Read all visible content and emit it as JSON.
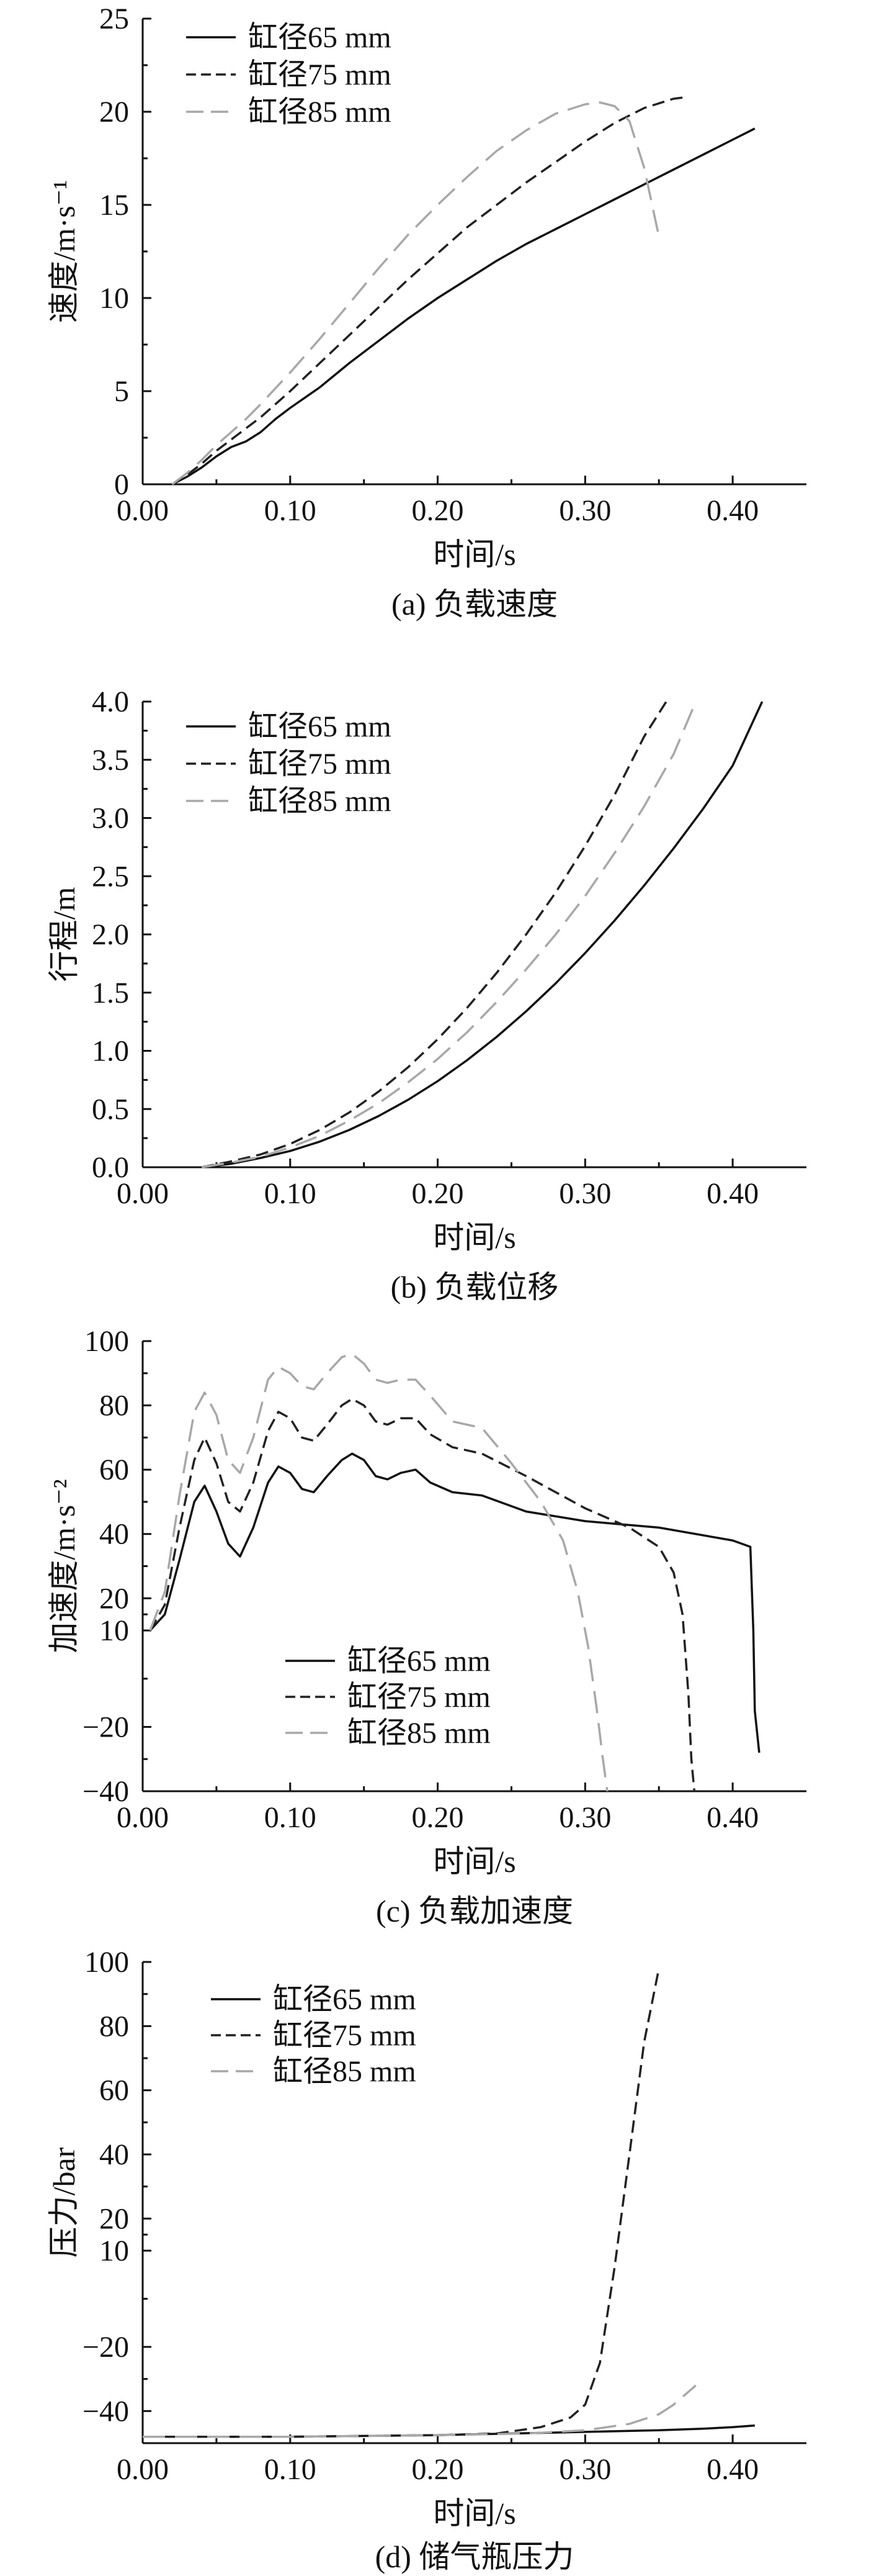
{
  "colors": {
    "black": "#111111",
    "dark": "#222222",
    "gray": "#a8a8a8"
  },
  "chart_data": [
    {
      "id": "a",
      "type": "line",
      "caption": "(a) 负载速度",
      "xlabel": "时间/s",
      "ylabel": "速度/m·s⁻¹",
      "xlim": [
        0,
        0.45
      ],
      "ylim": [
        0,
        25
      ],
      "xticks": [
        0,
        0.1,
        0.2,
        0.3,
        0.4
      ],
      "xtick_labels": [
        "0.00",
        "0.10",
        "0.20",
        "0.30",
        "0.40"
      ],
      "yticks": [
        0,
        5,
        10,
        15,
        20,
        25
      ],
      "ytick_labels": [
        "0",
        "5",
        "10",
        "15",
        "20",
        "25"
      ],
      "legend_position": "top-left",
      "series": [
        {
          "name": "缸径65 mm",
          "style": "solid",
          "color": "#111111",
          "x": [
            0.02,
            0.03,
            0.04,
            0.05,
            0.06,
            0.07,
            0.08,
            0.09,
            0.1,
            0.12,
            0.14,
            0.16,
            0.18,
            0.2,
            0.22,
            0.24,
            0.26,
            0.28,
            0.3,
            0.32,
            0.34,
            0.36,
            0.38,
            0.4,
            0.415
          ],
          "y": [
            0,
            0.4,
            0.9,
            1.5,
            2.0,
            2.3,
            2.8,
            3.5,
            4.1,
            5.2,
            6.5,
            7.7,
            8.9,
            10.0,
            11.0,
            12.0,
            12.9,
            13.7,
            14.5,
            15.3,
            16.1,
            16.9,
            17.7,
            18.5,
            19.1
          ]
        },
        {
          "name": "缸径75 mm",
          "style": "dashed",
          "color": "#222222",
          "x": [
            0.02,
            0.03,
            0.04,
            0.05,
            0.06,
            0.07,
            0.08,
            0.1,
            0.12,
            0.14,
            0.16,
            0.18,
            0.2,
            0.22,
            0.24,
            0.26,
            0.28,
            0.3,
            0.32,
            0.34,
            0.36,
            0.37
          ],
          "y": [
            0,
            0.5,
            1.1,
            1.8,
            2.4,
            3.0,
            3.6,
            5.0,
            6.5,
            8.0,
            9.5,
            11.0,
            12.4,
            13.8,
            15.0,
            16.2,
            17.3,
            18.4,
            19.4,
            20.2,
            20.7,
            20.8
          ]
        },
        {
          "name": "缸径85 mm",
          "style": "longdash",
          "color": "#a8a8a8",
          "x": [
            0.02,
            0.03,
            0.04,
            0.05,
            0.06,
            0.07,
            0.08,
            0.1,
            0.12,
            0.14,
            0.16,
            0.18,
            0.2,
            0.22,
            0.24,
            0.26,
            0.28,
            0.3,
            0.31,
            0.32,
            0.33,
            0.34,
            0.35
          ],
          "y": [
            0,
            0.6,
            1.3,
            2.1,
            2.8,
            3.5,
            4.3,
            6.0,
            7.8,
            9.7,
            11.6,
            13.4,
            15.0,
            16.5,
            17.9,
            19.0,
            19.9,
            20.4,
            20.5,
            20.3,
            19.5,
            17.0,
            13.3
          ]
        }
      ]
    },
    {
      "id": "b",
      "type": "line",
      "caption": "(b) 负载位移",
      "xlabel": "时间/s",
      "ylabel": "行程/m",
      "xlim": [
        0,
        0.45
      ],
      "ylim": [
        0,
        4.0
      ],
      "xticks": [
        0,
        0.1,
        0.2,
        0.3,
        0.4
      ],
      "xtick_labels": [
        "0.00",
        "0.10",
        "0.20",
        "0.30",
        "0.40"
      ],
      "yticks": [
        0,
        0.5,
        1.0,
        1.5,
        2.0,
        2.5,
        3.0,
        3.5,
        4.0
      ],
      "ytick_labels": [
        "0.0",
        "0.5",
        "1.0",
        "1.5",
        "2.0",
        "2.5",
        "3.0",
        "3.5",
        "4.0"
      ],
      "legend_position": "top-left",
      "series": [
        {
          "name": "缸径65 mm",
          "style": "solid",
          "color": "#111111",
          "x": [
            0.04,
            0.06,
            0.08,
            0.1,
            0.12,
            0.14,
            0.16,
            0.18,
            0.2,
            0.22,
            0.24,
            0.26,
            0.28,
            0.3,
            0.32,
            0.34,
            0.36,
            0.38,
            0.4,
            0.42
          ],
          "y": [
            0,
            0.03,
            0.08,
            0.14,
            0.22,
            0.32,
            0.44,
            0.58,
            0.74,
            0.92,
            1.12,
            1.34,
            1.58,
            1.84,
            2.12,
            2.42,
            2.74,
            3.08,
            3.45,
            4.0
          ]
        },
        {
          "name": "缸径75 mm",
          "style": "dashed",
          "color": "#222222",
          "x": [
            0.04,
            0.06,
            0.08,
            0.1,
            0.12,
            0.14,
            0.16,
            0.18,
            0.2,
            0.22,
            0.24,
            0.26,
            0.28,
            0.3,
            0.32,
            0.34,
            0.355
          ],
          "y": [
            0,
            0.05,
            0.11,
            0.2,
            0.32,
            0.47,
            0.65,
            0.86,
            1.1,
            1.37,
            1.67,
            2.0,
            2.36,
            2.76,
            3.2,
            3.7,
            4.0
          ]
        },
        {
          "name": "缸径85 mm",
          "style": "longdash",
          "color": "#a8a8a8",
          "x": [
            0.04,
            0.06,
            0.08,
            0.1,
            0.12,
            0.14,
            0.16,
            0.18,
            0.2,
            0.22,
            0.24,
            0.26,
            0.28,
            0.3,
            0.32,
            0.34,
            0.36,
            0.375
          ],
          "y": [
            0,
            0.04,
            0.09,
            0.17,
            0.27,
            0.4,
            0.55,
            0.73,
            0.93,
            1.16,
            1.42,
            1.7,
            2.0,
            2.33,
            2.7,
            3.1,
            3.55,
            4.0
          ]
        }
      ]
    },
    {
      "id": "c",
      "type": "line",
      "caption": "(c) 负载加速度",
      "xlabel": "时间/s",
      "ylabel": "加速度/m·s⁻²",
      "xlim": [
        0,
        0.45
      ],
      "ylim": [
        -40,
        100
      ],
      "xticks": [
        0,
        0.1,
        0.2,
        0.3,
        0.4
      ],
      "xtick_labels": [
        "0.00",
        "0.10",
        "0.20",
        "0.30",
        "0.40"
      ],
      "yticks": [
        -40,
        -20,
        10,
        20,
        40,
        60,
        80,
        100
      ],
      "ytick_labels": [
        "−40",
        "−20",
        "10",
        "20",
        "40",
        "60",
        "80",
        "100"
      ],
      "legend_position": "bottom-center",
      "series": [
        {
          "name": "缸径65 mm",
          "style": "solid",
          "color": "#111111",
          "x": [
            0.005,
            0.015,
            0.025,
            0.035,
            0.042,
            0.05,
            0.058,
            0.066,
            0.075,
            0.085,
            0.092,
            0.1,
            0.108,
            0.116,
            0.125,
            0.135,
            0.142,
            0.15,
            0.158,
            0.166,
            0.175,
            0.185,
            0.195,
            0.21,
            0.23,
            0.26,
            0.3,
            0.35,
            0.4,
            0.412,
            0.414,
            0.415,
            0.418
          ],
          "y": [
            10,
            15,
            32,
            50,
            55,
            47,
            37,
            33,
            42,
            56,
            61,
            59,
            54,
            53,
            58,
            63,
            65,
            63,
            58,
            57,
            59,
            60,
            56,
            53,
            52,
            47,
            44,
            42,
            38,
            36,
            10,
            -15,
            -28
          ]
        },
        {
          "name": "缸径75 mm",
          "style": "dashed",
          "color": "#222222",
          "x": [
            0.005,
            0.015,
            0.025,
            0.035,
            0.042,
            0.05,
            0.058,
            0.066,
            0.075,
            0.085,
            0.092,
            0.1,
            0.108,
            0.116,
            0.125,
            0.135,
            0.142,
            0.15,
            0.158,
            0.166,
            0.175,
            0.185,
            0.195,
            0.21,
            0.23,
            0.26,
            0.3,
            0.33,
            0.35,
            0.36,
            0.366,
            0.37,
            0.372,
            0.374
          ],
          "y": [
            10,
            18,
            42,
            63,
            70,
            62,
            50,
            47,
            56,
            72,
            78,
            76,
            70,
            69,
            74,
            80,
            82,
            80,
            75,
            74,
            76,
            76,
            71,
            67,
            65,
            58,
            48,
            42,
            36,
            28,
            15,
            -10,
            -30,
            -40
          ]
        },
        {
          "name": "缸径85 mm",
          "style": "longdash",
          "color": "#a8a8a8",
          "x": [
            0.005,
            0.015,
            0.025,
            0.035,
            0.042,
            0.05,
            0.058,
            0.066,
            0.075,
            0.085,
            0.092,
            0.1,
            0.108,
            0.116,
            0.125,
            0.135,
            0.142,
            0.15,
            0.158,
            0.166,
            0.175,
            0.185,
            0.195,
            0.21,
            0.23,
            0.25,
            0.27,
            0.285,
            0.295,
            0.302,
            0.308,
            0.312,
            0.315
          ],
          "y": [
            10,
            22,
            52,
            78,
            84,
            77,
            63,
            59,
            70,
            88,
            92,
            90,
            86,
            85,
            90,
            95,
            96,
            93,
            88,
            87,
            88,
            88,
            83,
            75,
            73,
            62,
            50,
            38,
            22,
            5,
            -15,
            -30,
            -40
          ]
        }
      ]
    },
    {
      "id": "d",
      "type": "line",
      "caption": "(d) 储气瓶压力",
      "xlabel": "时间/s",
      "ylabel": "压力/bar",
      "xlim": [
        0,
        0.45
      ],
      "ylim": [
        -50,
        100
      ],
      "xticks": [
        0,
        0.1,
        0.2,
        0.3,
        0.4
      ],
      "xtick_labels": [
        "0.00",
        "0.10",
        "0.20",
        "0.30",
        "0.40"
      ],
      "yticks": [
        -40,
        -20,
        10,
        20,
        40,
        60,
        80,
        100
      ],
      "ytick_labels": [
        "−40",
        "−20",
        "10",
        "20",
        "40",
        "60",
        "80",
        "100"
      ],
      "legend_position": "top-left",
      "series": [
        {
          "name": "缸径65 mm",
          "style": "solid",
          "color": "#111111",
          "x": [
            0,
            0.1,
            0.2,
            0.25,
            0.3,
            0.35,
            0.38,
            0.4,
            0.415
          ],
          "y": [
            -48,
            -48,
            -47.5,
            -47,
            -46.5,
            -46,
            -45.5,
            -45,
            -44.5
          ]
        },
        {
          "name": "缸径75 mm",
          "style": "dashed",
          "color": "#222222",
          "x": [
            0,
            0.1,
            0.2,
            0.24,
            0.27,
            0.29,
            0.3,
            0.31,
            0.32,
            0.33,
            0.34,
            0.35
          ],
          "y": [
            -48,
            -48,
            -47.5,
            -47,
            -45,
            -42,
            -38,
            -25,
            5,
            40,
            75,
            98
          ]
        },
        {
          "name": "缸径85 mm",
          "style": "longdash",
          "color": "#a8a8a8",
          "x": [
            0,
            0.1,
            0.2,
            0.26,
            0.3,
            0.33,
            0.35,
            0.36,
            0.37,
            0.375
          ],
          "y": [
            -48,
            -48,
            -47.5,
            -47,
            -46,
            -44,
            -41,
            -38,
            -34,
            -32
          ]
        }
      ]
    }
  ]
}
